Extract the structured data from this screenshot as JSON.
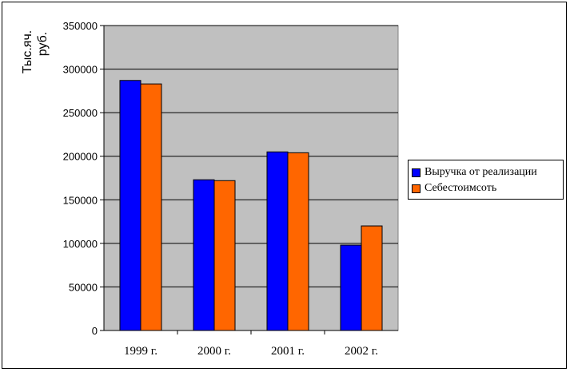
{
  "chart_data": {
    "type": "bar",
    "categories": [
      "1999 г.",
      "2000 г.",
      "2001 г.",
      "2002 г."
    ],
    "series": [
      {
        "name": "Выручка от реализации",
        "color": "#0000ff",
        "values": [
          287000,
          173000,
          205000,
          98000
        ]
      },
      {
        "name": "Себестоимсоть",
        "color": "#ff6600",
        "values": [
          283000,
          172000,
          204000,
          120000
        ]
      }
    ],
    "ylim": [
      0,
      350000
    ],
    "yticks": [
      "0",
      "50000",
      "100000",
      "150000",
      "200000",
      "250000",
      "300000",
      "350000"
    ],
    "ylabel_lines": [
      "Тыс.яч.",
      "руб."
    ],
    "grid": true,
    "legend_position": "right",
    "plot_background": "#c0c0c0"
  }
}
